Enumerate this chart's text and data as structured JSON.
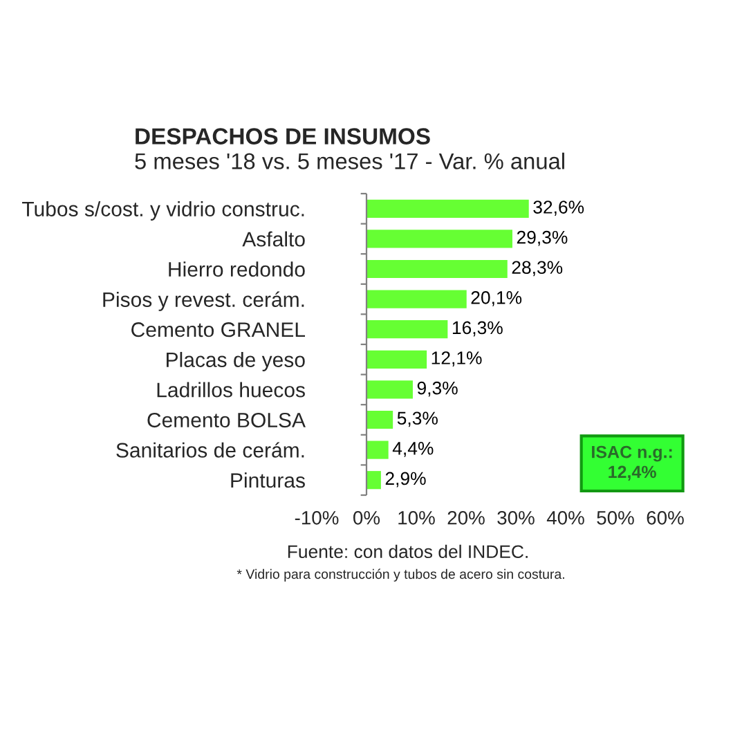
{
  "chart_data": {
    "type": "bar",
    "orientation": "horizontal",
    "title": "DESPACHOS DE INSUMOS",
    "subtitle": "5 meses '18 vs. 5 meses '17 - Var. % anual",
    "categories": [
      "Tubos s/cost. y vidrio construc.",
      "Asfalto",
      "Hierro redondo",
      "Pisos y revest. cerám.",
      "Cemento GRANEL",
      "Placas de yeso",
      "Ladrillos huecos",
      "Cemento BOLSA",
      "Sanitarios de cerám.",
      "Pinturas"
    ],
    "values": [
      32.6,
      29.3,
      28.3,
      20.1,
      16.3,
      12.1,
      9.3,
      5.3,
      4.4,
      2.9
    ],
    "value_labels": [
      "32,6%",
      "29,3%",
      "28,3%",
      "20,1%",
      "16,3%",
      "12,1%",
      "9,3%",
      "5,3%",
      "4,4%",
      "2,9%"
    ],
    "color": "#66ff33",
    "xlim": [
      -10,
      60
    ],
    "xticks": [
      {
        "value": -10,
        "label": "-10%"
      },
      {
        "value": 0,
        "label": "0%"
      },
      {
        "value": 10,
        "label": "10%"
      },
      {
        "value": 20,
        "label": "20%"
      },
      {
        "value": 30,
        "label": "30%"
      },
      {
        "value": 40,
        "label": "40%"
      },
      {
        "value": 50,
        "label": "50%"
      },
      {
        "value": 60,
        "label": "60%"
      }
    ],
    "ref_lines": [
      {
        "axis": "x",
        "value": 0,
        "color": "#808080"
      }
    ],
    "annotations": [
      "ISAC n.g.:\n12,4%",
      "Fuente: con datos del INDEC.",
      "* Vidrio para construcción y tubos de acero sin costura."
    ]
  }
}
